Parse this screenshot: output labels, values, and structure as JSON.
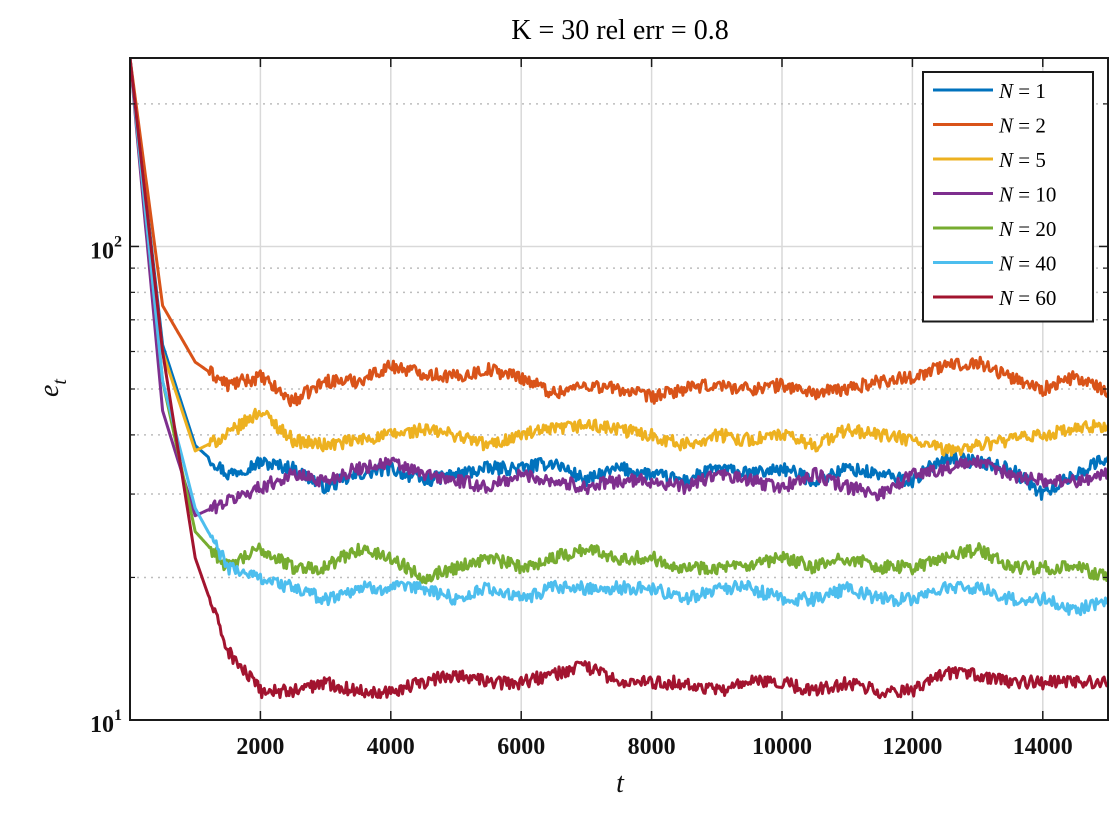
{
  "chart_data": {
    "type": "line",
    "title": "K = 30 rel err = 0.8",
    "xlabel": "t",
    "ylabel": "e",
    "ylabel_subscript": "t",
    "x_range": [
      0,
      15000
    ],
    "y_range": [
      10,
      250
    ],
    "y_scale": "log",
    "x_ticks": [
      2000,
      4000,
      6000,
      8000,
      10000,
      12000,
      14000
    ],
    "x_tick_labels": [
      "2000",
      "4000",
      "6000",
      "8000",
      "10000",
      "12000",
      "14000"
    ],
    "y_ticks": [
      10,
      100
    ],
    "y_tick_labels": [
      {
        "base": "10",
        "exp": "1"
      },
      {
        "base": "10",
        "exp": "2"
      }
    ],
    "grid": true,
    "minor_grid": true,
    "legend_position": "top-right",
    "series": [
      {
        "name": "N = 1",
        "legend_var": "N",
        "legend_value": "1",
        "color": "#0072BD",
        "x": [
          0,
          500,
          1000,
          1500,
          2000,
          2500,
          3000,
          3500,
          4000,
          4500,
          5000,
          5500,
          6000,
          6500,
          7000,
          7500,
          8000,
          8500,
          9000,
          9500,
          10000,
          10500,
          11000,
          11500,
          12000,
          12500,
          13000,
          13500,
          14000,
          14500,
          15000
        ],
        "y": [
          250,
          62,
          38,
          33,
          35,
          34,
          31,
          33,
          34,
          32,
          33,
          34,
          34,
          35,
          32,
          34,
          33,
          32,
          34,
          33,
          34,
          32,
          34,
          33,
          32,
          36,
          35,
          34,
          30,
          33,
          36
        ]
      },
      {
        "name": "N = 2",
        "legend_var": "N",
        "legend_value": "2",
        "color": "#D95319",
        "x": [
          0,
          500,
          1000,
          1500,
          2000,
          2500,
          3000,
          3500,
          4000,
          4500,
          5000,
          5500,
          6000,
          6500,
          7000,
          7500,
          8000,
          8500,
          9000,
          9500,
          10000,
          10500,
          11000,
          11500,
          12000,
          12500,
          13000,
          13500,
          14000,
          14500,
          15000
        ],
        "y": [
          250,
          75,
          57,
          51,
          53,
          47,
          52,
          52,
          56,
          54,
          53,
          55,
          53,
          49,
          51,
          50,
          48,
          50,
          51,
          50,
          51,
          49,
          50,
          52,
          53,
          56,
          57,
          53,
          50,
          53,
          49
        ]
      },
      {
        "name": "N = 5",
        "legend_var": "N",
        "legend_value": "5",
        "color": "#EDB120",
        "x": [
          0,
          500,
          1000,
          1500,
          2000,
          2500,
          3000,
          3500,
          4000,
          4500,
          5000,
          5500,
          6000,
          6500,
          7000,
          7500,
          8000,
          8500,
          9000,
          9500,
          10000,
          10500,
          11000,
          11500,
          12000,
          12500,
          13000,
          13500,
          14000,
          14500,
          15000
        ],
        "y": [
          250,
          60,
          37,
          40,
          45,
          39,
          38,
          39,
          40,
          41,
          40,
          38,
          40,
          41,
          42,
          41,
          40,
          38,
          40,
          39,
          40,
          38,
          41,
          40,
          39,
          37,
          38,
          39,
          40,
          41,
          42
        ]
      },
      {
        "name": "N = 10",
        "legend_var": "N",
        "legend_value": "10",
        "color": "#7E2F8E",
        "x": [
          0,
          500,
          1000,
          1500,
          2000,
          2500,
          3000,
          3500,
          4000,
          4500,
          5000,
          5500,
          6000,
          6500,
          7000,
          7500,
          8000,
          8500,
          9000,
          9500,
          10000,
          10500,
          11000,
          11500,
          12000,
          12500,
          13000,
          13500,
          14000,
          14500,
          15000
        ],
        "y": [
          250,
          45,
          27,
          29,
          31,
          33,
          32,
          34,
          35,
          33,
          32,
          31,
          33,
          32,
          31,
          32,
          32,
          31,
          33,
          32,
          31,
          33,
          31,
          30,
          33,
          34,
          35,
          33,
          32,
          32,
          33
        ]
      },
      {
        "name": "N = 20",
        "legend_var": "N",
        "legend_value": "20",
        "color": "#77AC30",
        "x": [
          0,
          500,
          1000,
          1500,
          2000,
          2500,
          3000,
          3500,
          4000,
          4500,
          5000,
          5500,
          6000,
          6500,
          7000,
          7500,
          8000,
          8500,
          9000,
          9500,
          10000,
          10500,
          11000,
          11500,
          12000,
          12500,
          13000,
          13500,
          14000,
          14500,
          15000
        ],
        "y": [
          250,
          52,
          25,
          21,
          23,
          21,
          21,
          23,
          22,
          20,
          21,
          22,
          21,
          22,
          23,
          22,
          22,
          21,
          21,
          21,
          22,
          21,
          22,
          21,
          21,
          22,
          23,
          21,
          21,
          21,
          20
        ]
      },
      {
        "name": "N = 40",
        "legend_var": "N",
        "legend_value": "40",
        "color": "#4DBEEE",
        "x": [
          0,
          500,
          1000,
          1500,
          2000,
          2500,
          3000,
          3500,
          4000,
          4500,
          5000,
          5500,
          6000,
          6500,
          7000,
          7500,
          8000,
          8500,
          9000,
          9500,
          10000,
          10500,
          11000,
          11500,
          12000,
          12500,
          13000,
          13500,
          14000,
          14500,
          15000
        ],
        "y": [
          250,
          52,
          28,
          21,
          20,
          19,
          18,
          19,
          19,
          19,
          18,
          19,
          18,
          19,
          19,
          19,
          19,
          18,
          19,
          19,
          18,
          18,
          19,
          18,
          18,
          19,
          19,
          18,
          18,
          17,
          18
        ]
      },
      {
        "name": "N = 60",
        "legend_var": "N",
        "legend_value": "60",
        "color": "#A2142F",
        "x": [
          0,
          500,
          1000,
          1500,
          2000,
          2500,
          3000,
          3500,
          4000,
          4500,
          5000,
          5500,
          6000,
          6500,
          7000,
          7500,
          8000,
          8500,
          9000,
          9500,
          10000,
          10500,
          11000,
          11500,
          12000,
          12500,
          13000,
          13500,
          14000,
          14500,
          15000
        ],
        "y": [
          250,
          60,
          22,
          14,
          11.5,
          11.5,
          12,
          11.5,
          11.5,
          12,
          12.5,
          12,
          12,
          12.5,
          13,
          12,
          12,
          12,
          11.5,
          12,
          12,
          11.5,
          12,
          11.5,
          11.5,
          12.5,
          12.5,
          12,
          12,
          12,
          12
        ]
      }
    ]
  }
}
